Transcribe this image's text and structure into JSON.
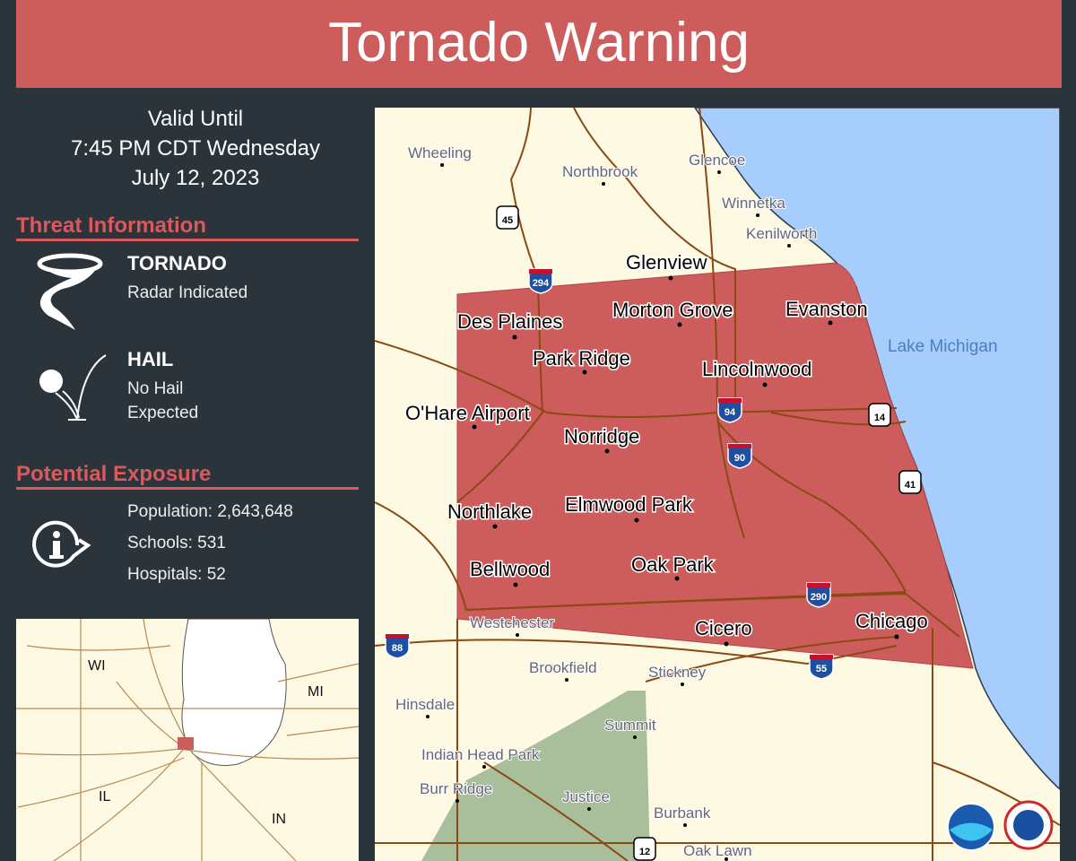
{
  "title": "Tornado Warning",
  "valid": {
    "line1": "Valid Until",
    "line2": "7:45 PM CDT Wednesday",
    "line3": "July 12, 2023"
  },
  "threat": {
    "heading": "Threat Information",
    "tornado_title": "TORNADO",
    "tornado_detail": "Radar Indicated",
    "hail_title": "HAIL",
    "hail_line1": "No Hail",
    "hail_line2": "Expected"
  },
  "exposure": {
    "heading": "Potential Exposure",
    "population": "Population: 2,643,648",
    "schools": "Schools: 531",
    "hospitals": "Hospitals: 52"
  },
  "colors": {
    "banner": "#cd5c5c",
    "warning_polygon": "#cd5c5c",
    "lake": "#a6cdfb",
    "land": "#fdf9e3",
    "forest": "#a9bf9c",
    "roads": "#8a4a14"
  },
  "map": {
    "lake_label": "Lake Michigan",
    "major_cities": [
      "Glenview",
      "Morton Grove",
      "Evanston",
      "Des Plaines",
      "Park Ridge",
      "Lincolnwood",
      "O'Hare Airport",
      "Norridge",
      "Northlake",
      "Elmwood Park",
      "Bellwood",
      "Oak Park",
      "Cicero",
      "Chicago"
    ],
    "minor_cities": [
      "Wheeling",
      "Northbrook",
      "Glencoe",
      "Winnetka",
      "Kenilworth",
      "Westchester",
      "Brookfield",
      "Stickney",
      "Hinsdale",
      "Summit",
      "Indian Head Park",
      "Burr Ridge",
      "Justice",
      "Burbank",
      "Oak Lawn"
    ],
    "highway_shields": [
      "45",
      "294",
      "94",
      "14",
      "90",
      "41",
      "290",
      "88",
      "55",
      "12"
    ]
  },
  "inset": {
    "labels": [
      "WI",
      "MI",
      "IL",
      "IN"
    ]
  },
  "logos": [
    "NOAA",
    "National Weather Service"
  ]
}
